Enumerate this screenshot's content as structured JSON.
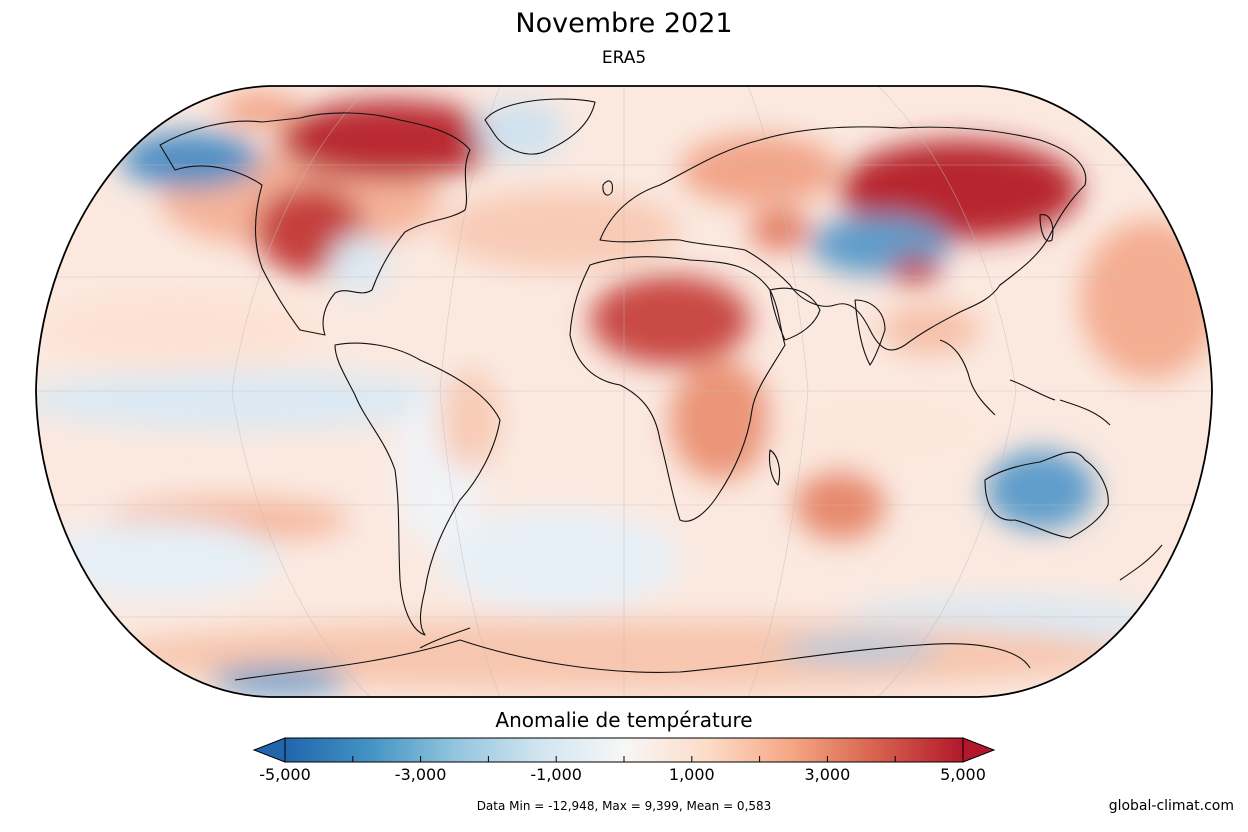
{
  "header": {
    "title": "Novembre 2021",
    "subtitle": "ERA5"
  },
  "map": {
    "projection": "Natural Earth (Robinson-like)",
    "variable": "temperature anomaly",
    "regions": [
      {
        "name": "Arctic Canada & Alaska north",
        "anomaly": 5.0
      },
      {
        "name": "Alaska",
        "anomaly": -3.5
      },
      {
        "name": "Western USA & Canada",
        "anomaly": 3.5
      },
      {
        "name": "Eastern USA",
        "anomaly": -0.5
      },
      {
        "name": "Greenland",
        "anomaly": -1.0
      },
      {
        "name": "Sahara",
        "anomaly": 3.0
      },
      {
        "name": "East Africa",
        "anomaly": 2.0
      },
      {
        "name": "Central Asia",
        "anomaly": -3.0
      },
      {
        "name": "Tibet",
        "anomaly": 3.5
      },
      {
        "name": "Siberia",
        "anomaly": 5.0
      },
      {
        "name": "Middle East",
        "anomaly": 2.0
      },
      {
        "name": "Australia",
        "anomaly": -2.5
      },
      {
        "name": "Indian Ocean south",
        "anomaly": 2.5
      },
      {
        "name": "Antarctica Weddell",
        "anomaly": -2.0
      },
      {
        "name": "Tropical Pacific",
        "anomaly": -1.0
      }
    ]
  },
  "colorbar": {
    "title": "Anomalie de température",
    "min": -5,
    "max": 5,
    "ticks": [
      {
        "value": -5,
        "label": "-5,000"
      },
      {
        "value": -3,
        "label": "-3,000"
      },
      {
        "value": -1,
        "label": "-1,000"
      },
      {
        "value": 1,
        "label": "1,000"
      },
      {
        "value": 3,
        "label": "3,000"
      },
      {
        "value": 5,
        "label": "5,000"
      }
    ],
    "colors": [
      "#2166ac",
      "#4393c3",
      "#92c5de",
      "#d1e5f0",
      "#f7f7f7",
      "#fddbc7",
      "#f4a582",
      "#d6604d",
      "#b2182b"
    ],
    "extend_low_color": "#2166ac",
    "extend_high_color": "#b2182b"
  },
  "footer": {
    "stats": "Data Min = -12,948, Max = 9,399, Mean = 0,583",
    "source": "global-climat.com"
  }
}
